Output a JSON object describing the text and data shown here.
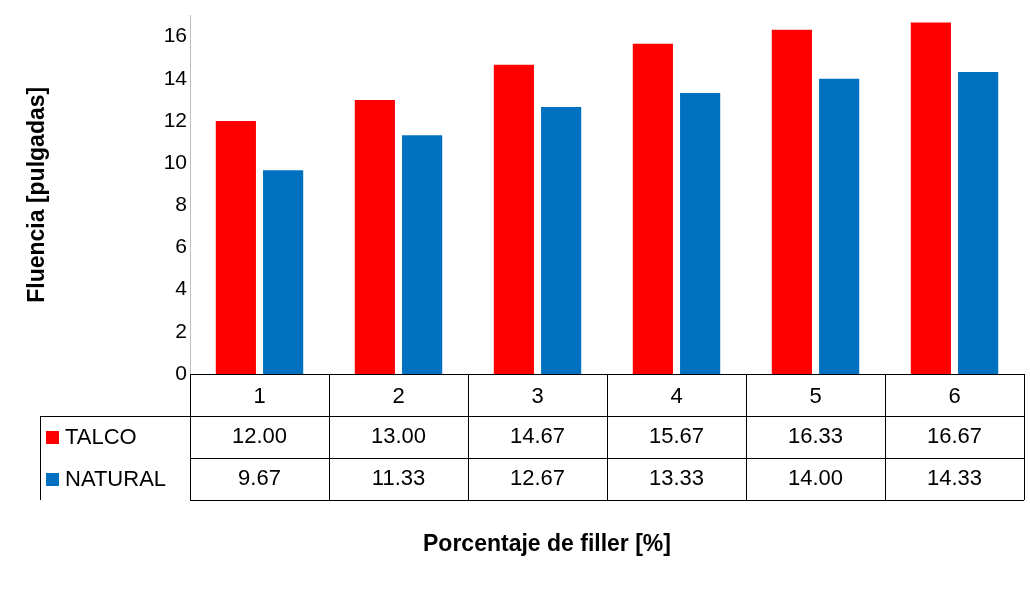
{
  "chart_data": {
    "type": "bar",
    "ylabel": "Fluencia [pulgadas]",
    "annotations": [
      "Porcentaje de filler [%]"
    ],
    "categories": [
      "1",
      "2",
      "3",
      "4",
      "5",
      "6"
    ],
    "series": [
      {
        "name": "TALCO",
        "color": "#ff0000",
        "values": [
          12.0,
          13.0,
          14.67,
          15.67,
          16.33,
          16.67
        ],
        "value_labels": [
          "12.00",
          "13.00",
          "14.67",
          "15.67",
          "16.33",
          "16.67"
        ]
      },
      {
        "name": "NATURAL",
        "color": "#0070c0",
        "values": [
          9.67,
          11.33,
          12.67,
          13.33,
          14.0,
          14.33
        ],
        "value_labels": [
          "9.67",
          "11.33",
          "12.67",
          "13.33",
          "14.00",
          "14.33"
        ]
      }
    ],
    "ylim": [
      0,
      17
    ],
    "yticks": [
      0,
      2,
      4,
      6,
      8,
      10,
      12,
      14,
      16
    ],
    "legend": "bottom"
  }
}
